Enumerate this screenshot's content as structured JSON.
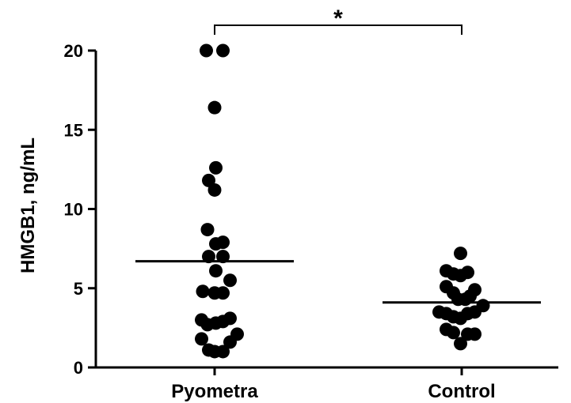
{
  "chart_data": {
    "type": "scatter",
    "ylabel": "HMGB1, ng/mL",
    "xlabel": "",
    "ylim": [
      0,
      20
    ],
    "yticks": [
      0,
      5,
      10,
      15,
      20
    ],
    "categories": [
      "Pyometra",
      "Control"
    ],
    "significance": {
      "label": "*",
      "between": [
        "Pyometra",
        "Control"
      ]
    },
    "colors": {
      "points": "#000000",
      "axes": "#000000"
    },
    "series": [
      {
        "category": "Pyometra",
        "mean": 6.7,
        "points": [
          {
            "jitter": -0.07,
            "y": 20.0
          },
          {
            "jitter": 0.07,
            "y": 20.0
          },
          {
            "jitter": 0.0,
            "y": 16.4
          },
          {
            "jitter": 0.01,
            "y": 12.6
          },
          {
            "jitter": -0.05,
            "y": 11.8
          },
          {
            "jitter": 0.0,
            "y": 11.2
          },
          {
            "jitter": -0.06,
            "y": 8.7
          },
          {
            "jitter": 0.01,
            "y": 7.8
          },
          {
            "jitter": 0.07,
            "y": 7.9
          },
          {
            "jitter": -0.05,
            "y": 7.0
          },
          {
            "jitter": 0.07,
            "y": 7.0
          },
          {
            "jitter": 0.01,
            "y": 6.1
          },
          {
            "jitter": 0.13,
            "y": 5.5
          },
          {
            "jitter": -0.1,
            "y": 4.8
          },
          {
            "jitter": 0.0,
            "y": 4.7
          },
          {
            "jitter": 0.07,
            "y": 4.7
          },
          {
            "jitter": -0.11,
            "y": 3.0
          },
          {
            "jitter": -0.06,
            "y": 2.7
          },
          {
            "jitter": 0.01,
            "y": 2.8
          },
          {
            "jitter": 0.07,
            "y": 2.9
          },
          {
            "jitter": 0.13,
            "y": 3.1
          },
          {
            "jitter": -0.11,
            "y": 1.8
          },
          {
            "jitter": 0.13,
            "y": 1.6
          },
          {
            "jitter": 0.19,
            "y": 2.1
          },
          {
            "jitter": -0.05,
            "y": 1.1
          },
          {
            "jitter": 0.0,
            "y": 1.0
          },
          {
            "jitter": 0.07,
            "y": 1.0
          }
        ]
      },
      {
        "category": "Control",
        "mean": 4.1,
        "points": [
          {
            "jitter": -0.01,
            "y": 7.2
          },
          {
            "jitter": -0.13,
            "y": 6.1
          },
          {
            "jitter": -0.07,
            "y": 5.9
          },
          {
            "jitter": -0.01,
            "y": 5.8
          },
          {
            "jitter": 0.05,
            "y": 6.0
          },
          {
            "jitter": -0.13,
            "y": 5.1
          },
          {
            "jitter": -0.07,
            "y": 4.7
          },
          {
            "jitter": 0.11,
            "y": 4.9
          },
          {
            "jitter": -0.03,
            "y": 4.3
          },
          {
            "jitter": 0.03,
            "y": 4.3
          },
          {
            "jitter": 0.07,
            "y": 4.5
          },
          {
            "jitter": 0.18,
            "y": 3.9
          },
          {
            "jitter": -0.19,
            "y": 3.5
          },
          {
            "jitter": -0.13,
            "y": 3.4
          },
          {
            "jitter": -0.07,
            "y": 3.2
          },
          {
            "jitter": -0.01,
            "y": 3.1
          },
          {
            "jitter": 0.05,
            "y": 3.4
          },
          {
            "jitter": 0.11,
            "y": 3.5
          },
          {
            "jitter": -0.13,
            "y": 2.4
          },
          {
            "jitter": -0.07,
            "y": 2.2
          },
          {
            "jitter": 0.05,
            "y": 2.1
          },
          {
            "jitter": 0.11,
            "y": 2.1
          },
          {
            "jitter": -0.01,
            "y": 1.5
          }
        ]
      }
    ]
  }
}
